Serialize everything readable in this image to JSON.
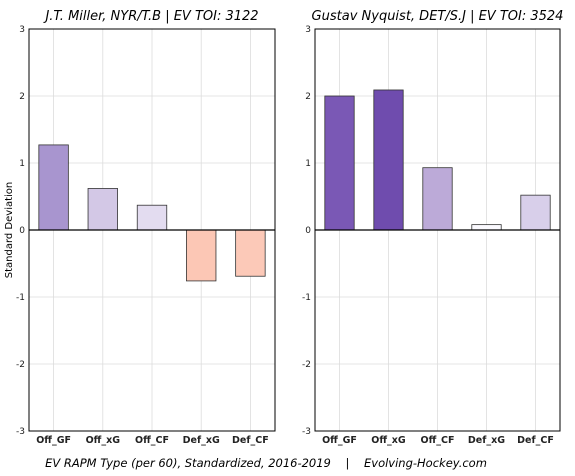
{
  "footer": "EV RAPM Type (per 60), Standardized, 2016-2019    |    Evolving-Hockey.com",
  "ylabel": "Standard Deviation",
  "chart_data": [
    {
      "type": "bar",
      "title": "J.T. Miller, NYR/T.B  |  EV TOI: 3122",
      "categories": [
        "Off_GF",
        "Off_xG",
        "Off_CF",
        "Def_xG",
        "Def_CF"
      ],
      "values": [
        1.27,
        0.62,
        0.37,
        -0.76,
        -0.69
      ],
      "colors": [
        "#a895cf",
        "#d3c8e6",
        "#e3dcf0",
        "#fcc7b5",
        "#fcc9b8"
      ],
      "ylabel": "Standard Deviation",
      "ylim": [
        -3,
        3
      ],
      "yticks": [
        -3,
        -2,
        -1,
        0,
        1,
        2,
        3
      ],
      "grid": true
    },
    {
      "type": "bar",
      "title": "Gustav Nyquist, DET/S.J  |  EV TOI: 3524",
      "categories": [
        "Off_GF",
        "Off_xG",
        "Off_CF",
        "Def_xG",
        "Def_CF"
      ],
      "values": [
        2.0,
        2.09,
        0.93,
        0.08,
        0.52
      ],
      "colors": [
        "#7a58b5",
        "#6f4cae",
        "#bcaad8",
        "#fbfaff",
        "#d8cfea"
      ],
      "ylabel": "",
      "ylim": [
        -3,
        3
      ],
      "yticks": [
        -3,
        -2,
        -1,
        0,
        1,
        2,
        3
      ],
      "grid": true
    }
  ]
}
